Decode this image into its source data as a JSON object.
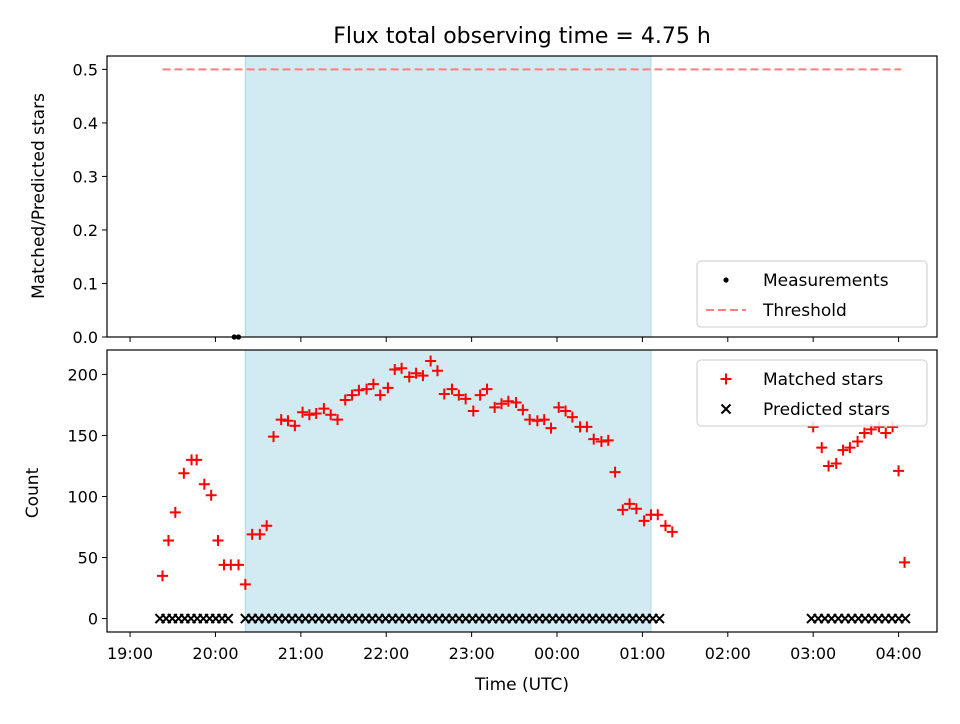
{
  "chart_data": [
    {
      "type": "scatter",
      "title": "Flux total observing time = 4.75 h",
      "xlabel": "",
      "ylabel": "Matched/Predicted stars",
      "ylim": [
        0,
        0.525
      ],
      "yticks": [
        "0.0",
        "0.1",
        "0.2",
        "0.3",
        "0.4",
        "0.5"
      ],
      "ytick_values": [
        0,
        0.1,
        0.2,
        0.3,
        0.4,
        0.5
      ],
      "x_axis": "time (hours after 19:00 UTC)",
      "xlim_hours": [
        -0.27,
        9.45
      ],
      "shaded_span_hours": [
        1.35,
        6.1
      ],
      "shade_color": "#add8e6",
      "legend_position": "lower right",
      "series": [
        {
          "name": "Measurements",
          "marker": "dot",
          "color": "#000000",
          "x": [
            1.22,
            1.27
          ],
          "y": [
            0,
            0
          ]
        },
        {
          "name": "Threshold",
          "style": "dashed-line",
          "color": "#ff7f7f",
          "x": [
            0.38,
            9.03
          ],
          "y": [
            0.5,
            0.5
          ]
        }
      ],
      "legend": [
        "Measurements",
        "Threshold"
      ]
    },
    {
      "type": "scatter",
      "title": "",
      "xlabel": "Time (UTC)",
      "ylabel": "Count",
      "ylim": [
        -11,
        220
      ],
      "yticks": [
        "0",
        "50",
        "100",
        "150",
        "200"
      ],
      "ytick_values": [
        0,
        50,
        100,
        150,
        200
      ],
      "xticks": [
        "19:00",
        "20:00",
        "21:00",
        "22:00",
        "23:00",
        "00:00",
        "01:00",
        "02:00",
        "03:00",
        "04:00"
      ],
      "xtick_hours": [
        0,
        1,
        2,
        3,
        4,
        5,
        6,
        7,
        8,
        9
      ],
      "xlim_hours": [
        -0.27,
        9.45
      ],
      "shaded_span_hours": [
        1.35,
        6.1
      ],
      "shade_color": "#add8e6",
      "legend_position": "upper right",
      "series": [
        {
          "name": "Matched stars",
          "marker": "plus",
          "color": "#ff0000",
          "points": [
            [
              0.38,
              35
            ],
            [
              0.45,
              64
            ],
            [
              0.53,
              87
            ],
            [
              0.63,
              119
            ],
            [
              0.72,
              130
            ],
            [
              0.78,
              130
            ],
            [
              0.87,
              110
            ],
            [
              0.95,
              101
            ],
            [
              1.03,
              64
            ],
            [
              1.1,
              44
            ],
            [
              1.18,
              44
            ],
            [
              1.27,
              44
            ],
            [
              1.35,
              28
            ],
            [
              1.43,
              69
            ],
            [
              1.52,
              69
            ],
            [
              1.6,
              76
            ],
            [
              1.68,
              149
            ],
            [
              1.77,
              163
            ],
            [
              1.85,
              162
            ],
            [
              1.93,
              158
            ],
            [
              2.02,
              169
            ],
            [
              2.1,
              167
            ],
            [
              2.18,
              168
            ],
            [
              2.27,
              172
            ],
            [
              2.35,
              167
            ],
            [
              2.43,
              163
            ],
            [
              2.52,
              179
            ],
            [
              2.6,
              183
            ],
            [
              2.68,
              187
            ],
            [
              2.77,
              188
            ],
            [
              2.85,
              192
            ],
            [
              2.93,
              183
            ],
            [
              3.02,
              189
            ],
            [
              3.1,
              204
            ],
            [
              3.18,
              205
            ],
            [
              3.27,
              198
            ],
            [
              3.35,
              201
            ],
            [
              3.43,
              199
            ],
            [
              3.52,
              211
            ],
            [
              3.6,
              203
            ],
            [
              3.68,
              184
            ],
            [
              3.77,
              188
            ],
            [
              3.85,
              183
            ],
            [
              3.93,
              180
            ],
            [
              4.02,
              170
            ],
            [
              4.1,
              183
            ],
            [
              4.18,
              188
            ],
            [
              4.27,
              173
            ],
            [
              4.35,
              176
            ],
            [
              4.43,
              178
            ],
            [
              4.52,
              177
            ],
            [
              4.6,
              171
            ],
            [
              4.68,
              163
            ],
            [
              4.77,
              162
            ],
            [
              4.85,
              163
            ],
            [
              4.93,
              156
            ],
            [
              5.02,
              173
            ],
            [
              5.1,
              170
            ],
            [
              5.18,
              165
            ],
            [
              5.27,
              157
            ],
            [
              5.35,
              157
            ],
            [
              5.43,
              147
            ],
            [
              5.52,
              145
            ],
            [
              5.6,
              146
            ],
            [
              5.68,
              120
            ],
            [
              5.77,
              89
            ],
            [
              5.85,
              94
            ],
            [
              5.93,
              90
            ],
            [
              6.02,
              80
            ],
            [
              6.1,
              85
            ],
            [
              6.18,
              85
            ],
            [
              6.27,
              76
            ],
            [
              6.35,
              71
            ],
            [
              8.0,
              157
            ],
            [
              8.1,
              140
            ],
            [
              8.18,
              125
            ],
            [
              8.27,
              127
            ],
            [
              8.35,
              138
            ],
            [
              8.43,
              140
            ],
            [
              8.52,
              145
            ],
            [
              8.6,
              152
            ],
            [
              8.68,
              155
            ],
            [
              8.77,
              157
            ],
            [
              8.85,
              152
            ],
            [
              8.93,
              157
            ],
            [
              9.0,
              121
            ],
            [
              9.07,
              46
            ]
          ]
        },
        {
          "name": "Predicted stars",
          "marker": "x",
          "color": "#000000",
          "x_segments": [
            [
              0.35,
              1.15,
              12
            ],
            [
              1.35,
              6.2,
              63
            ],
            [
              7.98,
              9.08,
              15
            ]
          ],
          "y": 0
        }
      ],
      "legend": [
        "Matched stars",
        "Predicted stars"
      ]
    }
  ]
}
